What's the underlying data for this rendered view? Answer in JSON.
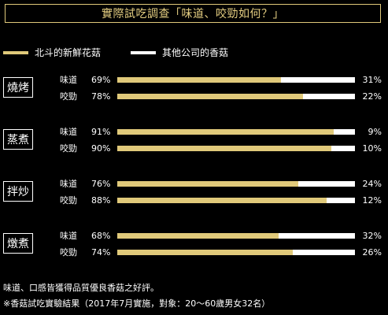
{
  "colors": {
    "brand": "#e0c97a",
    "competitor": "#ffffff",
    "background": "#000000"
  },
  "title": "實際試吃調查「味道、咬勁如何？」",
  "legend": {
    "brand": "北斗的新鮮花菇",
    "competitor": "其他公司的香菇"
  },
  "footnotes": [
    "味道、口感皆獲得品質優良香菇之好評。",
    "※香菇試吃實驗結果（2017年7月實施，對象：20〜60歲男女32名）"
  ],
  "chart_data": {
    "type": "bar",
    "orientation": "horizontal",
    "stacked": "100%",
    "title": "實際試吃調查「味道、咬勁如何？」",
    "series": [
      {
        "name": "北斗的新鮮花菇",
        "color": "#e0c97a"
      },
      {
        "name": "其他公司的香菇",
        "color": "#ffffff"
      }
    ],
    "groups": [
      {
        "category": "燒烤",
        "rows": [
          {
            "label": "味道",
            "brand": 69,
            "brand_text": "69%",
            "other": 31,
            "other_text": "31%"
          },
          {
            "label": "咬勁",
            "brand": 78,
            "brand_text": "78%",
            "other": 22,
            "other_text": "22%"
          }
        ]
      },
      {
        "category": "蒸煮",
        "rows": [
          {
            "label": "味道",
            "brand": 91,
            "brand_text": "91%",
            "other": 9,
            "other_text": "9%"
          },
          {
            "label": "咬勁",
            "brand": 90,
            "brand_text": "90%",
            "other": 10,
            "other_text": "10%"
          }
        ]
      },
      {
        "category": "拌炒",
        "rows": [
          {
            "label": "味道",
            "brand": 76,
            "brand_text": "76%",
            "other": 24,
            "other_text": "24%"
          },
          {
            "label": "咬勁",
            "brand": 88,
            "brand_text": "88%",
            "other": 12,
            "other_text": "12%"
          }
        ]
      },
      {
        "category": "燉煮",
        "rows": [
          {
            "label": "味道",
            "brand": 68,
            "brand_text": "68%",
            "other": 32,
            "other_text": "32%"
          },
          {
            "label": "咬勁",
            "brand": 74,
            "brand_text": "74%",
            "other": 26,
            "other_text": "26%"
          }
        ]
      }
    ],
    "xlim": [
      0,
      100
    ],
    "legend_position": "top-left"
  }
}
